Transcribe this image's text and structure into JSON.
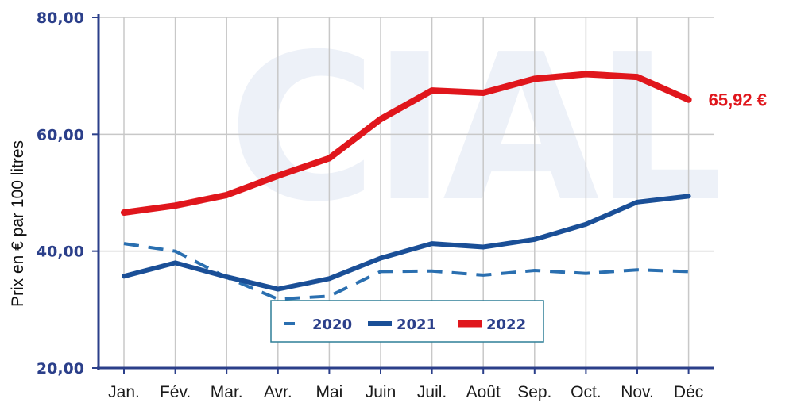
{
  "chart_data": {
    "type": "line",
    "watermark": "CIAL",
    "ylabel": "Prix en € par 100 litres",
    "categories": [
      "Jan.",
      "Fév.",
      "Mar.",
      "Avr.",
      "Mai",
      "Juin",
      "Juil.",
      "Août",
      "Sep.",
      "Oct.",
      "Nov.",
      "Déc"
    ],
    "ylim": [
      20,
      80
    ],
    "yticks": [
      {
        "value": 20,
        "label": "20,00"
      },
      {
        "value": 40,
        "label": "40,00"
      },
      {
        "value": 60,
        "label": "60,00"
      },
      {
        "value": 80,
        "label": "80,00"
      }
    ],
    "grid": true,
    "legend_position": "bottom-center",
    "series": [
      {
        "name": "2020",
        "style": "dashed",
        "color": "#2a6fb0",
        "values": [
          41.3,
          40.0,
          35.5,
          31.8,
          32.3,
          36.5,
          36.6,
          35.9,
          36.7,
          36.2,
          36.8,
          36.5
        ]
      },
      {
        "name": "2021",
        "style": "solid",
        "color": "#1a4f97",
        "values": [
          35.7,
          38.0,
          35.6,
          33.5,
          35.3,
          38.8,
          41.3,
          40.7,
          42.0,
          44.6,
          48.4,
          49.4
        ]
      },
      {
        "name": "2022",
        "style": "solid",
        "color": "#e0161c",
        "values": [
          46.6,
          47.8,
          49.6,
          52.9,
          55.9,
          62.6,
          67.5,
          67.1,
          69.5,
          70.3,
          69.8,
          65.92
        ]
      }
    ],
    "annotations": [
      {
        "series": "2022",
        "text": "65,92 €",
        "color": "#e0161c"
      }
    ]
  }
}
